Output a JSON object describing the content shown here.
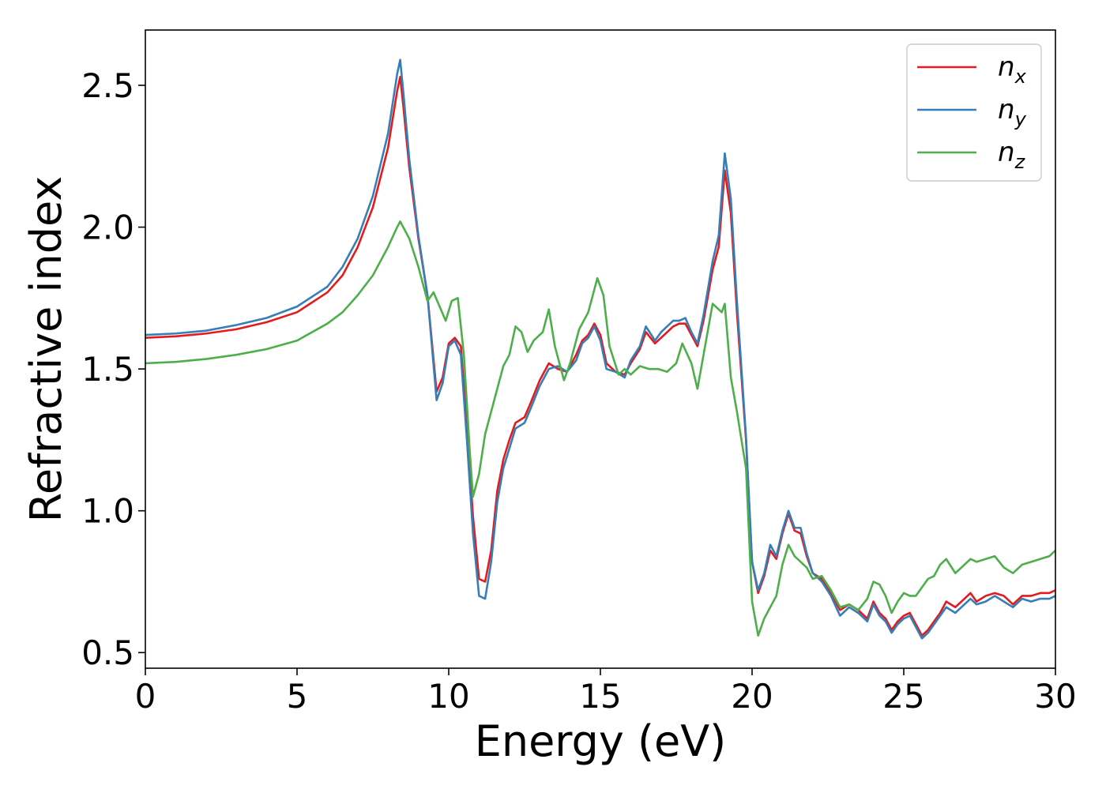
{
  "chart_data": {
    "type": "line",
    "title": "",
    "xlabel": "Energy (eV)",
    "ylabel": "Refractive index",
    "xlim": [
      0,
      30
    ],
    "ylim": [
      0.445,
      2.695
    ],
    "xticks": [
      0,
      5,
      10,
      15,
      20,
      25,
      30
    ],
    "yticks": [
      0.5,
      1.0,
      1.5,
      2.0,
      2.5
    ],
    "xtick_labels": [
      "0",
      "5",
      "10",
      "15",
      "20",
      "25",
      "30"
    ],
    "ytick_labels": [
      "0.5",
      "1.0",
      "1.5",
      "2.0",
      "2.5"
    ],
    "grid": false,
    "legend_position": "top-right",
    "legend": [
      {
        "main": "n",
        "sub": "x",
        "color": "#e41a1c"
      },
      {
        "main": "n",
        "sub": "y",
        "color": "#377eb8"
      },
      {
        "main": "n",
        "sub": "z",
        "color": "#4daf4a"
      }
    ],
    "series": [
      {
        "name": "n_x",
        "color": "#e41a1c",
        "points": [
          [
            0,
            1.61
          ],
          [
            1,
            1.615
          ],
          [
            2,
            1.625
          ],
          [
            3,
            1.64
          ],
          [
            4,
            1.665
          ],
          [
            5,
            1.7
          ],
          [
            6,
            1.77
          ],
          [
            6.5,
            1.83
          ],
          [
            7,
            1.93
          ],
          [
            7.5,
            2.07
          ],
          [
            8,
            2.28
          ],
          [
            8.3,
            2.48
          ],
          [
            8.4,
            2.53
          ],
          [
            8.5,
            2.43
          ],
          [
            8.7,
            2.21
          ],
          [
            9.0,
            1.96
          ],
          [
            9.3,
            1.76
          ],
          [
            9.6,
            1.42
          ],
          [
            9.8,
            1.47
          ],
          [
            10.0,
            1.59
          ],
          [
            10.2,
            1.61
          ],
          [
            10.4,
            1.58
          ],
          [
            10.6,
            1.3
          ],
          [
            10.8,
            0.98
          ],
          [
            11.0,
            0.76
          ],
          [
            11.2,
            0.75
          ],
          [
            11.4,
            0.86
          ],
          [
            11.6,
            1.07
          ],
          [
            11.8,
            1.18
          ],
          [
            12.0,
            1.25
          ],
          [
            12.2,
            1.31
          ],
          [
            12.5,
            1.33
          ],
          [
            12.7,
            1.38
          ],
          [
            13.0,
            1.46
          ],
          [
            13.3,
            1.52
          ],
          [
            13.6,
            1.5
          ],
          [
            13.9,
            1.49
          ],
          [
            14.2,
            1.55
          ],
          [
            14.4,
            1.6
          ],
          [
            14.6,
            1.62
          ],
          [
            14.8,
            1.66
          ],
          [
            15.0,
            1.62
          ],
          [
            15.2,
            1.52
          ],
          [
            15.5,
            1.49
          ],
          [
            15.8,
            1.48
          ],
          [
            16.0,
            1.52
          ],
          [
            16.3,
            1.57
          ],
          [
            16.5,
            1.63
          ],
          [
            16.8,
            1.59
          ],
          [
            17.0,
            1.61
          ],
          [
            17.4,
            1.65
          ],
          [
            17.6,
            1.66
          ],
          [
            17.8,
            1.66
          ],
          [
            18.0,
            1.62
          ],
          [
            18.2,
            1.58
          ],
          [
            18.4,
            1.67
          ],
          [
            18.7,
            1.85
          ],
          [
            18.9,
            1.93
          ],
          [
            19.1,
            2.2
          ],
          [
            19.3,
            2.05
          ],
          [
            19.5,
            1.7
          ],
          [
            19.8,
            1.25
          ],
          [
            20.0,
            0.82
          ],
          [
            20.2,
            0.71
          ],
          [
            20.4,
            0.77
          ],
          [
            20.6,
            0.86
          ],
          [
            20.8,
            0.83
          ],
          [
            21.0,
            0.92
          ],
          [
            21.2,
            0.99
          ],
          [
            21.4,
            0.93
          ],
          [
            21.6,
            0.92
          ],
          [
            21.8,
            0.84
          ],
          [
            22.0,
            0.78
          ],
          [
            22.3,
            0.76
          ],
          [
            22.6,
            0.71
          ],
          [
            22.9,
            0.65
          ],
          [
            23.2,
            0.67
          ],
          [
            23.5,
            0.65
          ],
          [
            23.8,
            0.62
          ],
          [
            24.0,
            0.68
          ],
          [
            24.2,
            0.64
          ],
          [
            24.4,
            0.62
          ],
          [
            24.6,
            0.58
          ],
          [
            24.8,
            0.61
          ],
          [
            25.0,
            0.63
          ],
          [
            25.2,
            0.64
          ],
          [
            25.4,
            0.6
          ],
          [
            25.6,
            0.56
          ],
          [
            25.8,
            0.58
          ],
          [
            26.0,
            0.61
          ],
          [
            26.2,
            0.64
          ],
          [
            26.4,
            0.68
          ],
          [
            26.7,
            0.66
          ],
          [
            27.0,
            0.69
          ],
          [
            27.2,
            0.71
          ],
          [
            27.4,
            0.68
          ],
          [
            27.7,
            0.7
          ],
          [
            28.0,
            0.71
          ],
          [
            28.3,
            0.7
          ],
          [
            28.6,
            0.67
          ],
          [
            28.9,
            0.7
          ],
          [
            29.2,
            0.7
          ],
          [
            29.5,
            0.71
          ],
          [
            29.8,
            0.71
          ],
          [
            30.0,
            0.72
          ]
        ]
      },
      {
        "name": "n_y",
        "color": "#377eb8",
        "points": [
          [
            0,
            1.62
          ],
          [
            1,
            1.625
          ],
          [
            2,
            1.635
          ],
          [
            3,
            1.655
          ],
          [
            4,
            1.68
          ],
          [
            5,
            1.72
          ],
          [
            6,
            1.79
          ],
          [
            6.5,
            1.86
          ],
          [
            7,
            1.96
          ],
          [
            7.5,
            2.11
          ],
          [
            8,
            2.33
          ],
          [
            8.3,
            2.54
          ],
          [
            8.4,
            2.59
          ],
          [
            8.5,
            2.48
          ],
          [
            8.7,
            2.24
          ],
          [
            9.0,
            1.97
          ],
          [
            9.3,
            1.76
          ],
          [
            9.6,
            1.39
          ],
          [
            9.8,
            1.45
          ],
          [
            10.0,
            1.58
          ],
          [
            10.2,
            1.6
          ],
          [
            10.4,
            1.55
          ],
          [
            10.6,
            1.25
          ],
          [
            10.8,
            0.92
          ],
          [
            11.0,
            0.7
          ],
          [
            11.2,
            0.69
          ],
          [
            11.4,
            0.82
          ],
          [
            11.6,
            1.03
          ],
          [
            11.8,
            1.15
          ],
          [
            12.0,
            1.22
          ],
          [
            12.2,
            1.29
          ],
          [
            12.5,
            1.31
          ],
          [
            12.7,
            1.36
          ],
          [
            13.0,
            1.44
          ],
          [
            13.3,
            1.5
          ],
          [
            13.6,
            1.51
          ],
          [
            13.9,
            1.49
          ],
          [
            14.2,
            1.53
          ],
          [
            14.4,
            1.59
          ],
          [
            14.6,
            1.61
          ],
          [
            14.8,
            1.65
          ],
          [
            15.0,
            1.6
          ],
          [
            15.2,
            1.5
          ],
          [
            15.5,
            1.49
          ],
          [
            15.8,
            1.47
          ],
          [
            16.0,
            1.53
          ],
          [
            16.3,
            1.58
          ],
          [
            16.5,
            1.65
          ],
          [
            16.8,
            1.6
          ],
          [
            17.0,
            1.63
          ],
          [
            17.4,
            1.67
          ],
          [
            17.6,
            1.67
          ],
          [
            17.8,
            1.68
          ],
          [
            18.0,
            1.63
          ],
          [
            18.2,
            1.59
          ],
          [
            18.4,
            1.69
          ],
          [
            18.7,
            1.88
          ],
          [
            18.9,
            1.97
          ],
          [
            19.1,
            2.26
          ],
          [
            19.3,
            2.1
          ],
          [
            19.5,
            1.74
          ],
          [
            19.8,
            1.26
          ],
          [
            20.0,
            0.82
          ],
          [
            20.2,
            0.72
          ],
          [
            20.4,
            0.78
          ],
          [
            20.6,
            0.88
          ],
          [
            20.8,
            0.84
          ],
          [
            21.0,
            0.93
          ],
          [
            21.2,
            1.0
          ],
          [
            21.4,
            0.94
          ],
          [
            21.6,
            0.94
          ],
          [
            21.8,
            0.85
          ],
          [
            22.0,
            0.78
          ],
          [
            22.3,
            0.75
          ],
          [
            22.6,
            0.7
          ],
          [
            22.9,
            0.63
          ],
          [
            23.2,
            0.66
          ],
          [
            23.5,
            0.64
          ],
          [
            23.8,
            0.61
          ],
          [
            24.0,
            0.67
          ],
          [
            24.2,
            0.63
          ],
          [
            24.4,
            0.61
          ],
          [
            24.6,
            0.57
          ],
          [
            24.8,
            0.6
          ],
          [
            25.0,
            0.62
          ],
          [
            25.2,
            0.63
          ],
          [
            25.4,
            0.59
          ],
          [
            25.6,
            0.55
          ],
          [
            25.8,
            0.57
          ],
          [
            26.0,
            0.6
          ],
          [
            26.2,
            0.63
          ],
          [
            26.4,
            0.66
          ],
          [
            26.7,
            0.64
          ],
          [
            27.0,
            0.67
          ],
          [
            27.2,
            0.69
          ],
          [
            27.4,
            0.67
          ],
          [
            27.7,
            0.68
          ],
          [
            28.0,
            0.7
          ],
          [
            28.3,
            0.68
          ],
          [
            28.6,
            0.66
          ],
          [
            28.9,
            0.69
          ],
          [
            29.2,
            0.68
          ],
          [
            29.5,
            0.69
          ],
          [
            29.8,
            0.69
          ],
          [
            30.0,
            0.7
          ]
        ]
      },
      {
        "name": "n_z",
        "color": "#4daf4a",
        "points": [
          [
            0,
            1.52
          ],
          [
            1,
            1.525
          ],
          [
            2,
            1.535
          ],
          [
            3,
            1.55
          ],
          [
            4,
            1.57
          ],
          [
            5,
            1.6
          ],
          [
            6,
            1.66
          ],
          [
            6.5,
            1.7
          ],
          [
            7,
            1.76
          ],
          [
            7.5,
            1.83
          ],
          [
            8,
            1.93
          ],
          [
            8.3,
            2.0
          ],
          [
            8.4,
            2.02
          ],
          [
            8.5,
            2.0
          ],
          [
            8.7,
            1.96
          ],
          [
            9.0,
            1.86
          ],
          [
            9.3,
            1.74
          ],
          [
            9.5,
            1.77
          ],
          [
            9.7,
            1.72
          ],
          [
            9.9,
            1.67
          ],
          [
            10.1,
            1.74
          ],
          [
            10.3,
            1.75
          ],
          [
            10.5,
            1.55
          ],
          [
            10.7,
            1.2
          ],
          [
            10.8,
            1.05
          ],
          [
            11.0,
            1.13
          ],
          [
            11.2,
            1.27
          ],
          [
            11.5,
            1.39
          ],
          [
            11.8,
            1.51
          ],
          [
            12.0,
            1.55
          ],
          [
            12.2,
            1.65
          ],
          [
            12.4,
            1.63
          ],
          [
            12.6,
            1.56
          ],
          [
            12.8,
            1.6
          ],
          [
            13.1,
            1.63
          ],
          [
            13.3,
            1.71
          ],
          [
            13.5,
            1.58
          ],
          [
            13.8,
            1.46
          ],
          [
            14.0,
            1.52
          ],
          [
            14.3,
            1.64
          ],
          [
            14.6,
            1.7
          ],
          [
            14.9,
            1.82
          ],
          [
            15.1,
            1.76
          ],
          [
            15.3,
            1.58
          ],
          [
            15.6,
            1.48
          ],
          [
            15.8,
            1.5
          ],
          [
            16.0,
            1.48
          ],
          [
            16.3,
            1.51
          ],
          [
            16.6,
            1.5
          ],
          [
            16.9,
            1.5
          ],
          [
            17.2,
            1.49
          ],
          [
            17.5,
            1.52
          ],
          [
            17.7,
            1.59
          ],
          [
            18.0,
            1.52
          ],
          [
            18.2,
            1.43
          ],
          [
            18.4,
            1.55
          ],
          [
            18.7,
            1.73
          ],
          [
            19.0,
            1.7
          ],
          [
            19.1,
            1.73
          ],
          [
            19.3,
            1.47
          ],
          [
            19.5,
            1.35
          ],
          [
            19.8,
            1.15
          ],
          [
            20.0,
            0.68
          ],
          [
            20.2,
            0.56
          ],
          [
            20.4,
            0.62
          ],
          [
            20.6,
            0.66
          ],
          [
            20.8,
            0.7
          ],
          [
            21.0,
            0.81
          ],
          [
            21.2,
            0.88
          ],
          [
            21.4,
            0.84
          ],
          [
            21.6,
            0.82
          ],
          [
            21.8,
            0.8
          ],
          [
            22.0,
            0.76
          ],
          [
            22.3,
            0.77
          ],
          [
            22.6,
            0.72
          ],
          [
            22.9,
            0.66
          ],
          [
            23.2,
            0.67
          ],
          [
            23.5,
            0.65
          ],
          [
            23.8,
            0.69
          ],
          [
            24.0,
            0.75
          ],
          [
            24.2,
            0.74
          ],
          [
            24.4,
            0.7
          ],
          [
            24.6,
            0.64
          ],
          [
            24.8,
            0.68
          ],
          [
            25.0,
            0.71
          ],
          [
            25.2,
            0.7
          ],
          [
            25.4,
            0.7
          ],
          [
            25.6,
            0.73
          ],
          [
            25.8,
            0.76
          ],
          [
            26.0,
            0.77
          ],
          [
            26.2,
            0.81
          ],
          [
            26.4,
            0.83
          ],
          [
            26.7,
            0.78
          ],
          [
            27.0,
            0.81
          ],
          [
            27.2,
            0.83
          ],
          [
            27.4,
            0.82
          ],
          [
            27.7,
            0.83
          ],
          [
            28.0,
            0.84
          ],
          [
            28.3,
            0.8
          ],
          [
            28.6,
            0.78
          ],
          [
            28.9,
            0.81
          ],
          [
            29.2,
            0.82
          ],
          [
            29.5,
            0.83
          ],
          [
            29.8,
            0.84
          ],
          [
            30.0,
            0.86
          ]
        ]
      }
    ]
  }
}
